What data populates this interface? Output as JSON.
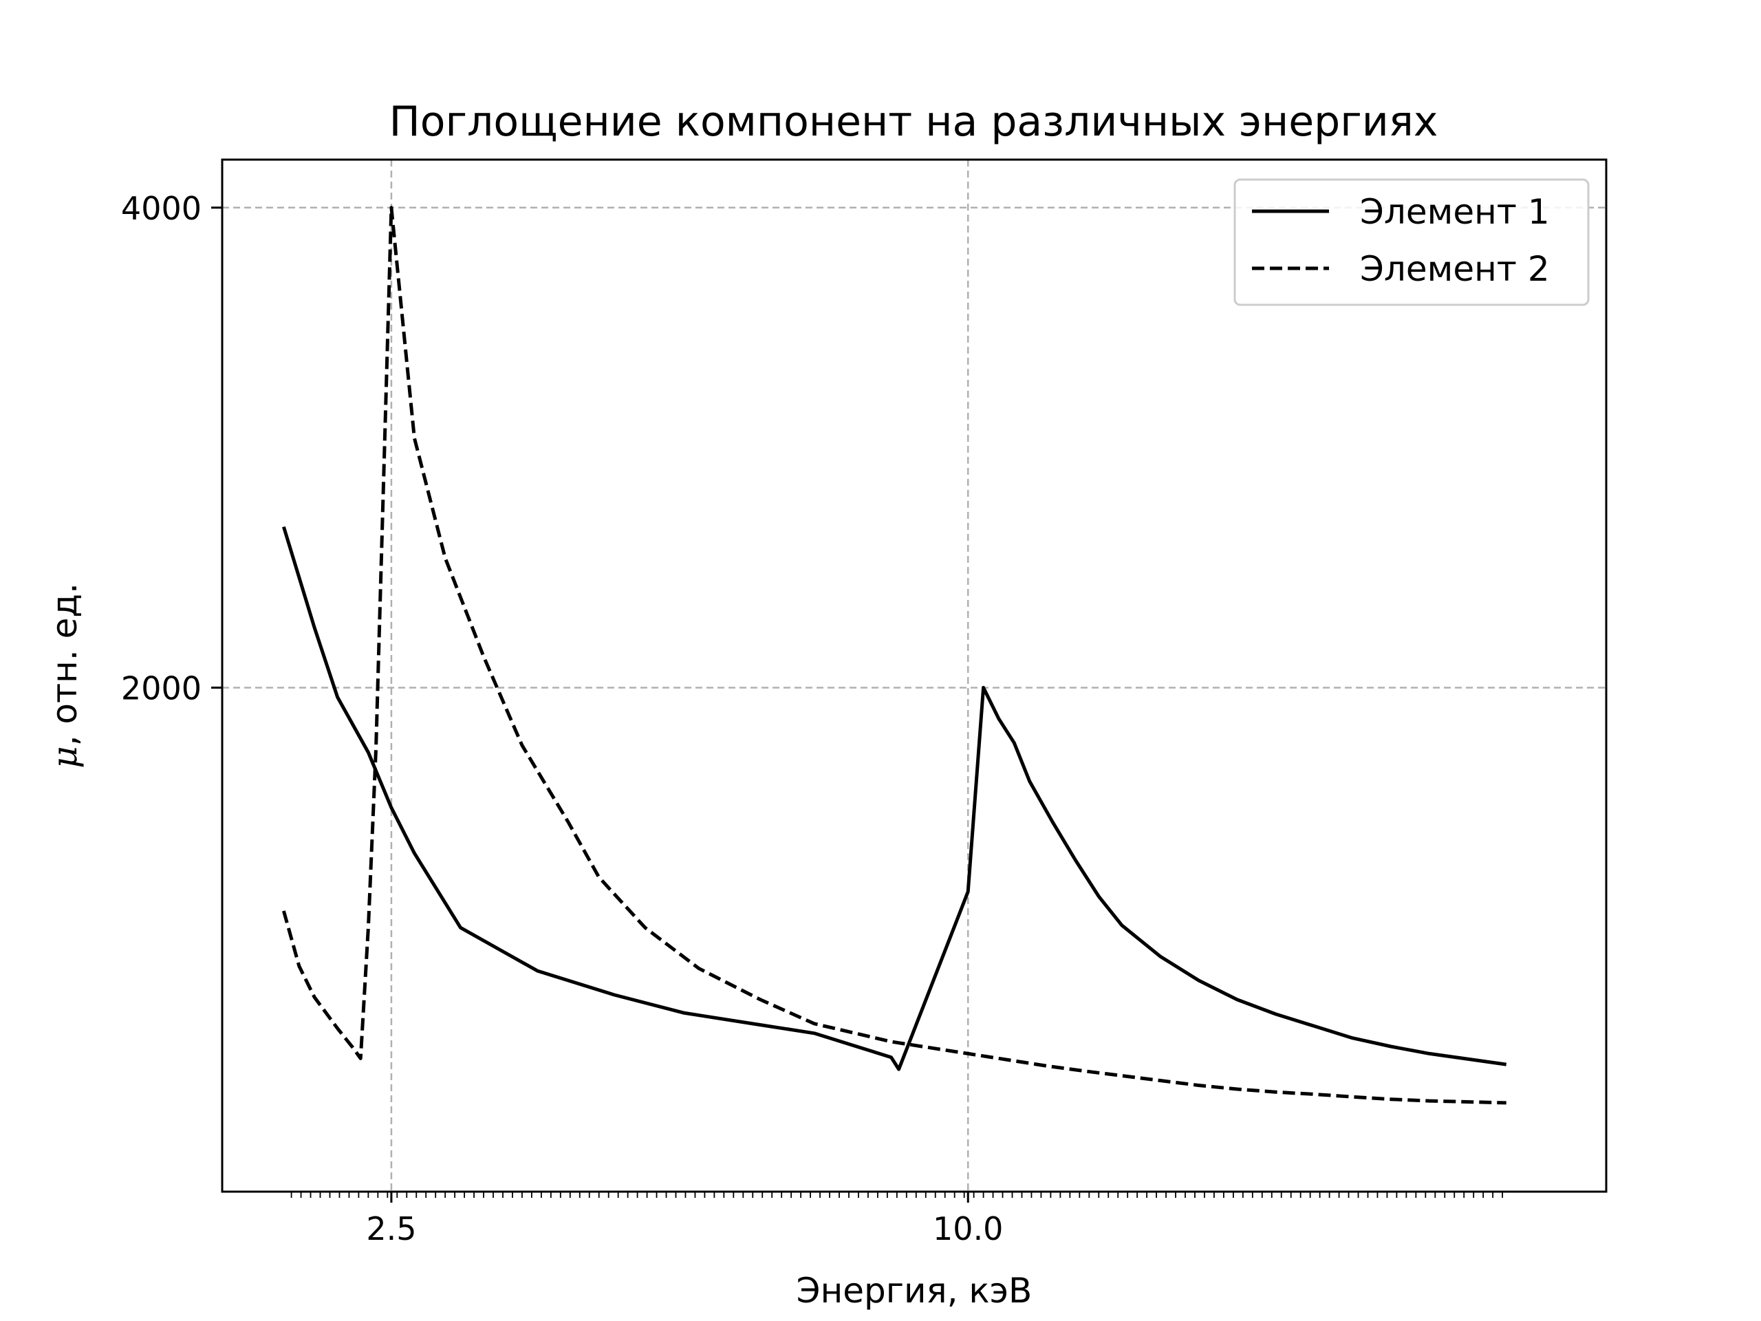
{
  "chart_data": {
    "type": "line",
    "title": "Поглощение компонент на различных энергиях",
    "xlabel": "Энергия, кэВ",
    "ylabel_symbol": "μ",
    "ylabel": ", отн. ед.",
    "x_ticks": [
      2.5,
      10.0
    ],
    "x_tick_labels": [
      "2.5",
      "10.0"
    ],
    "y_ticks": [
      2000,
      4000
    ],
    "y_tick_labels": [
      "2000",
      "4000"
    ],
    "xlim": [
      0.3,
      18.3
    ],
    "ylim": [
      -100,
      4200
    ],
    "x_minor_ticks": {
      "start": 1.2,
      "step": 0.125,
      "end": 17.0
    },
    "grid": true,
    "grid_style": "dashed",
    "legend_position": "top-right",
    "series": [
      {
        "name": "Элемент 1",
        "line_style": "solid",
        "color": "#000000",
        "x": [
          1.1,
          1.5,
          1.8,
          2.2,
          2.5,
          2.8,
          3.4,
          4.4,
          5.4,
          6.3,
          7.3,
          8.0,
          9.0,
          9.1,
          10.0,
          10.2,
          10.4,
          10.6,
          10.8,
          11.1,
          11.4,
          11.7,
          12.0,
          12.5,
          13.0,
          13.5,
          14.0,
          14.5,
          15.0,
          15.5,
          16.0,
          17.0
        ],
        "y": [
          2670,
          2250,
          1960,
          1730,
          1500,
          1310,
          1000,
          820,
          720,
          645,
          595,
          560,
          460,
          410,
          1150,
          2000,
          1870,
          1770,
          1610,
          1440,
          1280,
          1130,
          1010,
          880,
          780,
          700,
          640,
          590,
          540,
          505,
          475,
          430
        ]
      },
      {
        "name": "Элемент 2",
        "line_style": "dashed",
        "color": "#000000",
        "x": [
          1.1,
          1.3,
          1.5,
          1.8,
          2.0,
          2.1,
          2.2,
          2.3,
          2.5,
          2.8,
          3.2,
          3.7,
          4.2,
          4.8,
          5.2,
          5.8,
          6.5,
          7.3,
          8.0,
          9.0,
          9.5,
          10.0,
          10.5,
          11.0,
          11.5,
          12.0,
          12.5,
          13.0,
          13.5,
          14.0,
          14.5,
          15.0,
          15.5,
          16.0,
          17.0
        ],
        "y": [
          1070,
          840,
          710,
          580,
          500,
          455,
          1000,
          1750,
          4000,
          3040,
          2540,
          2130,
          1760,
          1440,
          1210,
          1000,
          830,
          700,
          600,
          525,
          500,
          475,
          450,
          425,
          403,
          383,
          363,
          343,
          327,
          315,
          306,
          295,
          285,
          278,
          270
        ]
      }
    ]
  }
}
